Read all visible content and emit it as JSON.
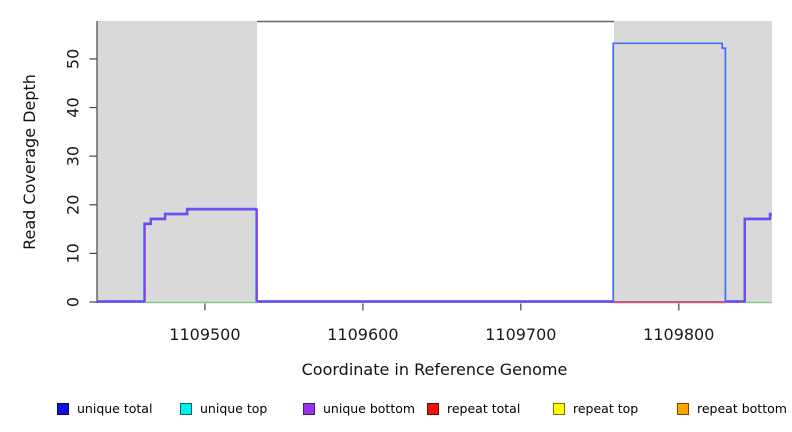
{
  "chart_data": {
    "type": "line",
    "title": "",
    "xlabel": "Coordinate in Reference Genome",
    "ylabel": "Read Coverage Depth",
    "x_ticks": [
      1109500,
      1109600,
      1109700,
      1109800
    ],
    "y_ticks": [
      0,
      10,
      20,
      30,
      40,
      50
    ],
    "xlim": [
      1109432,
      1109859
    ],
    "ylim": [
      0,
      57.8
    ],
    "grid": false,
    "legend_position": "bottom",
    "shaded_regions": [
      {
        "name": "shaded-region-left",
        "x0": 1109432,
        "x1": 1109533,
        "color": "#D9D9D9"
      },
      {
        "name": "shaded-region-right",
        "x0": 1109759,
        "x1": 1109859,
        "color": "#D9D9D9"
      }
    ],
    "series": [
      {
        "name": "unique total",
        "color": "#4070EE",
        "steps": [
          [
            1109432,
            0
          ],
          [
            1109462,
            16
          ],
          [
            1109466,
            17
          ],
          [
            1109475,
            18
          ],
          [
            1109489,
            19
          ],
          [
            1109533,
            0
          ],
          [
            1109759,
            53
          ],
          [
            1109828,
            52
          ],
          [
            1109830,
            0
          ],
          [
            1109842,
            17
          ],
          [
            1109858,
            18
          ]
        ]
      },
      {
        "name": "unique bottom",
        "color": "#7E3FF2",
        "steps": [
          [
            1109432,
            0
          ],
          [
            1109462,
            16
          ],
          [
            1109466,
            17
          ],
          [
            1109475,
            18
          ],
          [
            1109489,
            19
          ],
          [
            1109533,
            0
          ],
          [
            1109842,
            17
          ],
          [
            1109858,
            18
          ]
        ]
      }
    ],
    "baseline_segments": [
      {
        "name": "repeat-total-baseline",
        "color": "#E05C5C",
        "x0": 1109759,
        "x1": 1109830,
        "value": 0
      },
      {
        "name": "green-baseline-left",
        "color": "#85C985",
        "x0": 1109462,
        "x1": 1109533,
        "value": 0
      },
      {
        "name": "green-baseline-right",
        "color": "#85C985",
        "x0": 1109842,
        "x1": 1109859,
        "value": 0
      }
    ],
    "legend": [
      {
        "label": "unique total",
        "color": "#1111DD"
      },
      {
        "label": "unique top",
        "color": "#00EEEE"
      },
      {
        "label": "unique bottom",
        "color": "#9932E8"
      },
      {
        "label": "repeat total",
        "color": "#EE1111"
      },
      {
        "label": "repeat top",
        "color": "#FFFF00"
      },
      {
        "label": "repeat bottom",
        "color": "#FFA500"
      }
    ]
  }
}
